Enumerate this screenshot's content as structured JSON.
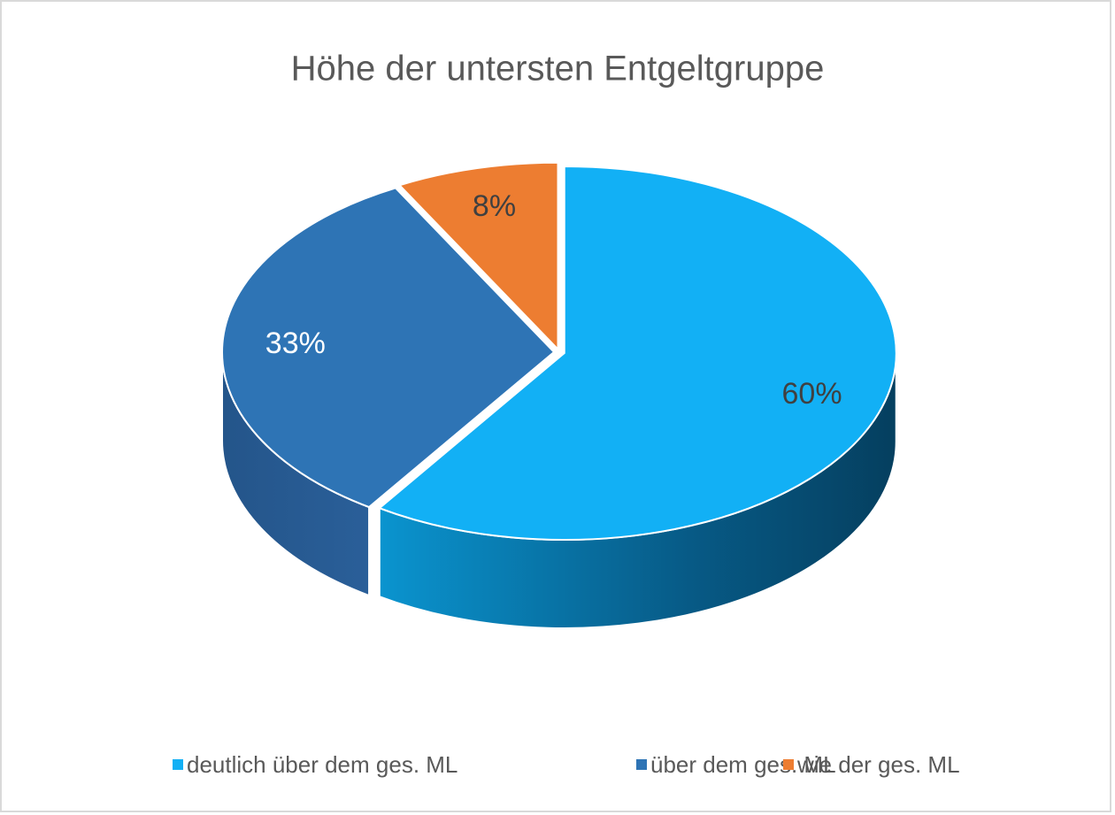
{
  "chart_data": {
    "type": "pie",
    "title": "Höhe der untersten Entgeltgruppe",
    "categories": [
      "deutlich über dem ges. ML",
      "über dem ges. ML",
      "wie der ges. ML"
    ],
    "values": [
      60,
      33,
      8
    ],
    "value_labels": [
      "60%",
      "33%",
      "8%"
    ],
    "colors": [
      "#12b0f5",
      "#2e74b5",
      "#ed7d31"
    ],
    "legend": "bottom"
  }
}
